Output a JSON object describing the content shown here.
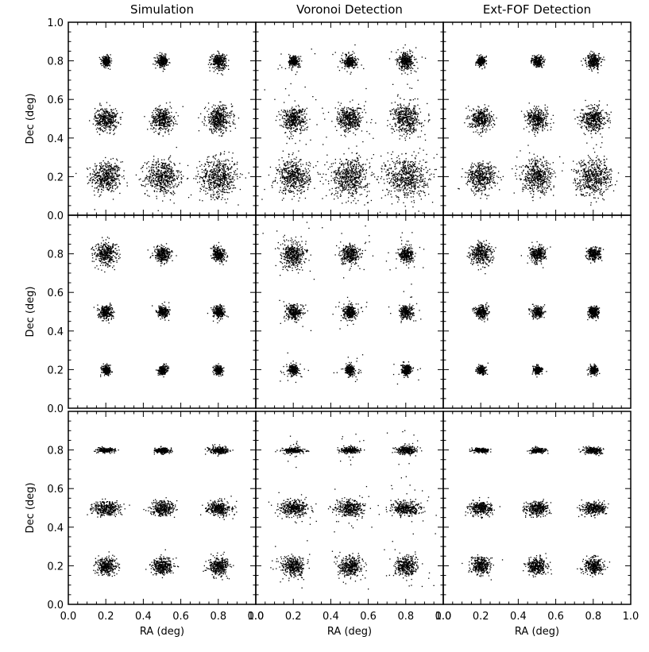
{
  "figure": {
    "col_titles": [
      "Simulation",
      "Voronoi Detection",
      "Ext-FOF Detection"
    ],
    "xlabel": "RA (deg)",
    "ylabel": "Dec (deg)"
  },
  "chart_data": {
    "type": "scatter",
    "grid": false,
    "xlim": [
      0.0,
      1.0
    ],
    "ylim": [
      0.0,
      1.0
    ],
    "x_ticks": [
      "0.0",
      "0.2",
      "0.4",
      "0.6",
      "0.8",
      "1.0"
    ],
    "y_ticks": [
      "0.0",
      "0.2",
      "0.4",
      "0.6",
      "0.8",
      "1.0"
    ],
    "x_tick_values": [
      0.0,
      0.2,
      0.4,
      0.6,
      0.8,
      1.0
    ],
    "y_tick_values": [
      0.0,
      0.2,
      0.4,
      0.6,
      0.8,
      1.0
    ],
    "cluster_ra": [
      0.2,
      0.5,
      0.8
    ],
    "cluster_dec": [
      0.2,
      0.5,
      0.8
    ],
    "rows": [
      {
        "y_ticks": [
          "0.0",
          "0.2",
          "0.4",
          "0.6",
          "0.8",
          "1.0"
        ],
        "spread_deg": [
          [
            0.04,
            0.045,
            0.05
          ],
          [
            0.03,
            0.03,
            0.035
          ],
          [
            0.012,
            0.015,
            0.02
          ]
        ],
        "elongation": [
          [
            1,
            1,
            1
          ],
          [
            1,
            1,
            1
          ],
          [
            1,
            1,
            1
          ]
        ]
      },
      {
        "y_ticks": [
          "0.0",
          "0.2",
          "0.4",
          "0.6",
          "0.8"
        ],
        "spread_deg": [
          [
            0.012,
            0.012,
            0.012
          ],
          [
            0.018,
            0.016,
            0.016
          ],
          [
            0.03,
            0.022,
            0.018
          ]
        ],
        "elongation": [
          [
            1,
            1,
            1
          ],
          [
            1,
            1,
            1
          ],
          [
            1,
            1,
            1
          ]
        ]
      },
      {
        "y_ticks": [
          "0.0",
          "0.2",
          "0.4",
          "0.6",
          "0.8"
        ],
        "spread_deg": [
          [
            0.025,
            0.025,
            0.025
          ],
          [
            0.025,
            0.025,
            0.025
          ],
          [
            0.012,
            0.012,
            0.015
          ]
        ],
        "elongation": [
          [
            1.2,
            1.2,
            1.2
          ],
          [
            1.8,
            1.8,
            1.8
          ],
          [
            4.0,
            3.0,
            2.5
          ]
        ]
      }
    ]
  }
}
